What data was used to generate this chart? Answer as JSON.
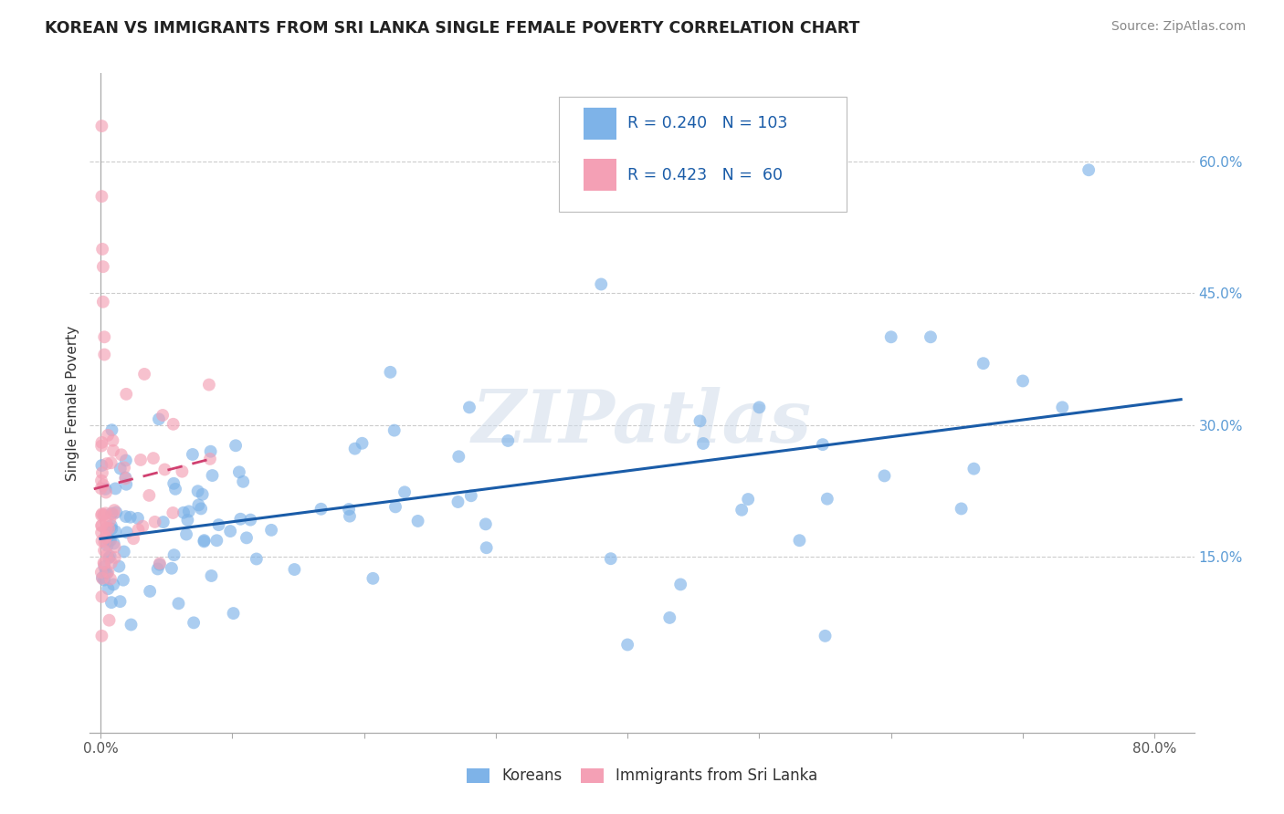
{
  "title": "KOREAN VS IMMIGRANTS FROM SRI LANKA SINGLE FEMALE POVERTY CORRELATION CHART",
  "source": "Source: ZipAtlas.com",
  "ylabel": "Single Female Poverty",
  "xlim": [
    -0.008,
    0.83
  ],
  "ylim": [
    -0.05,
    0.7
  ],
  "korean_color": "#7EB3E8",
  "srilanka_color": "#F4A0B5",
  "trend_korean_color": "#1A5CA8",
  "trend_srilanka_color": "#D04070",
  "R_korean": 0.24,
  "N_korean": 103,
  "R_srilanka": 0.423,
  "N_srilanka": 60,
  "watermark": "ZIPatlas",
  "legend_korean": "Koreans",
  "legend_srilanka": "Immigrants from Sri Lanka",
  "background_color": "#ffffff",
  "legend_text_color": "#1A5CA8",
  "title_color": "#222222",
  "source_color": "#888888",
  "ylabel_color": "#333333",
  "grid_color": "#cccccc",
  "right_tick_color": "#5B9BD5",
  "y_ticks_right": [
    0.15,
    0.3,
    0.45,
    0.6
  ],
  "y_tick_labels_right": [
    "15.0%",
    "30.0%",
    "45.0%",
    "60.0%"
  ]
}
